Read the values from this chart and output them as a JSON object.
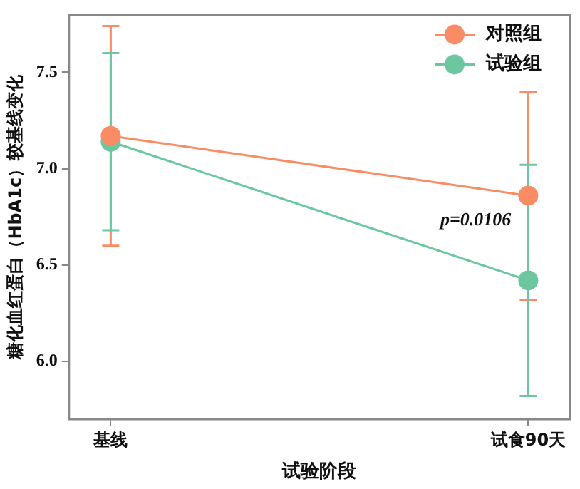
{
  "chart_data": {
    "type": "line",
    "xlabel": "试验阶段",
    "ylabel": "糖化血红蛋白（HbA1c）较基线变化",
    "categories": [
      "基线",
      "试食90天"
    ],
    "series": [
      {
        "name": "对照组",
        "color": "#f98c64",
        "values": [
          7.17,
          6.86
        ],
        "errors": [
          [
            6.6,
            7.74
          ],
          [
            6.32,
            7.4
          ]
        ]
      },
      {
        "name": "试验组",
        "color": "#6cc7a0",
        "values": [
          7.14,
          6.42
        ],
        "errors": [
          [
            6.68,
            7.6
          ],
          [
            5.82,
            7.02
          ]
        ]
      }
    ],
    "ylim": [
      5.7,
      7.8
    ],
    "yticks": [
      {
        "value": 6,
        "label": "6.0"
      },
      {
        "value": 6.5,
        "label": "6.5"
      },
      {
        "value": 7,
        "label": "7.0"
      },
      {
        "value": 7.5,
        "label": "7.5"
      }
    ],
    "annotations": [
      {
        "text": "p=0.0106",
        "x": "试食90天",
        "y": 6.73
      }
    ],
    "legend": "top right",
    "marker": "circle",
    "line_style": "solid",
    "grid": false
  }
}
